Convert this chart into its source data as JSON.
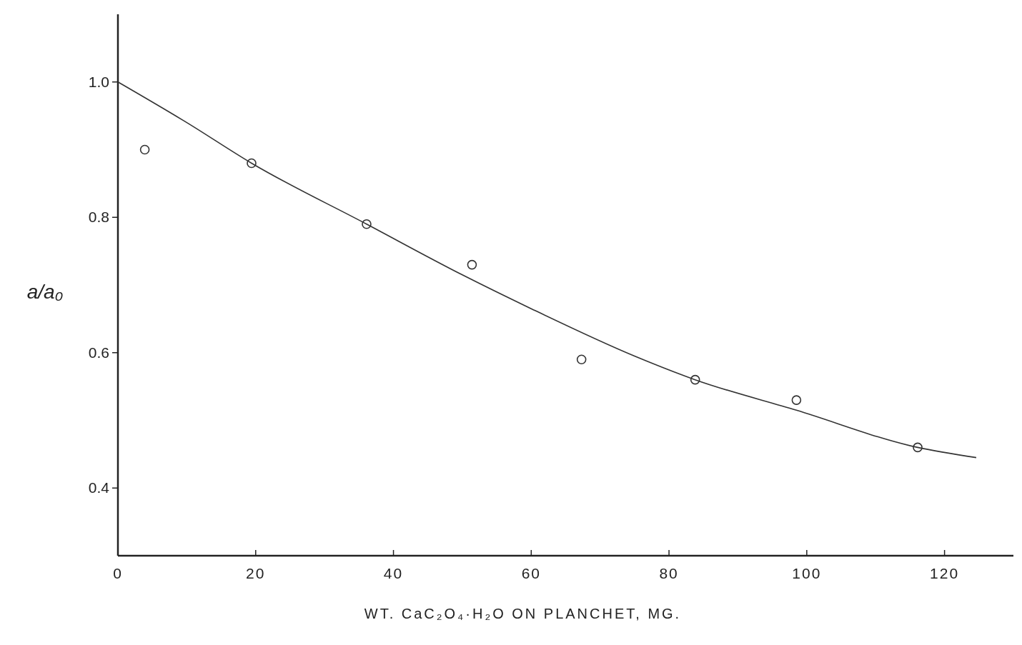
{
  "chart_data": {
    "type": "scatter",
    "xlabel": "WT. CaC₂O₄·H₂O ON PLANCHET, MG.",
    "ylabel": "a/a₀",
    "xlim": [
      0,
      130
    ],
    "ylim": [
      0.3,
      1.1
    ],
    "xticks": [
      0,
      20,
      40,
      60,
      80,
      100,
      120
    ],
    "yticks": [
      0.4,
      0.6,
      0.8,
      {
        "value": 1,
        "label": "1.0"
      }
    ],
    "grid": false,
    "series": [
      {
        "marker": "circle",
        "color": "#333333",
        "x": [
          3.9,
          19.4,
          36.1,
          51.4,
          67.3,
          83.8,
          98.5,
          116.1
        ],
        "values": [
          0.9,
          0.88,
          0.79,
          0.73,
          0.59,
          0.56,
          0.53,
          0.46
        ]
      },
      {
        "type": "line",
        "line_style": "solid",
        "color": "#333333",
        "x": [
          0,
          10,
          19.4,
          36.1,
          50,
          60,
          75,
          83.8,
          98.5,
          116.1,
          124.6
        ],
        "values": [
          1.0,
          0.94,
          0.88,
          0.79,
          0.715,
          0.665,
          0.595,
          0.56,
          0.515,
          0.46,
          0.445
        ]
      }
    ]
  }
}
